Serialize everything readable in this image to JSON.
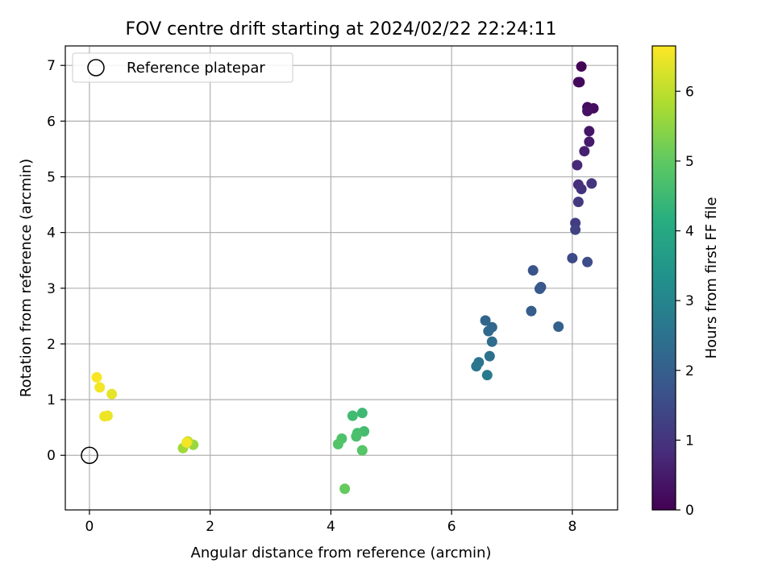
{
  "chart_data": {
    "type": "scatter",
    "title": "FOV centre drift starting at 2024/02/22 22:24:11",
    "xlabel": "Angular distance from reference (arcmin)",
    "ylabel": "Rotation from reference (arcmin)",
    "xlim": [
      -0.4,
      8.75
    ],
    "ylim": [
      -0.98,
      7.35
    ],
    "xticks": [
      0,
      2,
      4,
      6,
      8
    ],
    "yticks": [
      0,
      1,
      2,
      3,
      4,
      5,
      6,
      7
    ],
    "grid": true,
    "legend": {
      "placement": "top-left",
      "entries": [
        "Reference platepar"
      ]
    },
    "reference_point": {
      "x": 0,
      "y": 0
    },
    "colorbar": {
      "label": "Hours from first FF file",
      "colormap": "viridis",
      "range": [
        0,
        6.65
      ],
      "ticks": [
        0,
        1,
        2,
        3,
        4,
        5,
        6
      ]
    },
    "points": [
      {
        "x": 8.15,
        "y": 6.98,
        "c": 0.05
      },
      {
        "x": 8.1,
        "y": 6.7,
        "c": 0.1
      },
      {
        "x": 8.12,
        "y": 6.7,
        "c": 0.15
      },
      {
        "x": 8.25,
        "y": 6.25,
        "c": 0.2
      },
      {
        "x": 8.35,
        "y": 6.23,
        "c": 0.25
      },
      {
        "x": 8.25,
        "y": 6.18,
        "c": 0.3
      },
      {
        "x": 8.28,
        "y": 5.82,
        "c": 0.4
      },
      {
        "x": 8.28,
        "y": 5.63,
        "c": 0.5
      },
      {
        "x": 8.2,
        "y": 5.46,
        "c": 0.6
      },
      {
        "x": 8.08,
        "y": 5.21,
        "c": 0.75
      },
      {
        "x": 8.1,
        "y": 4.86,
        "c": 0.85
      },
      {
        "x": 8.15,
        "y": 4.78,
        "c": 0.95
      },
      {
        "x": 8.32,
        "y": 4.88,
        "c": 1.0
      },
      {
        "x": 8.1,
        "y": 4.55,
        "c": 1.1
      },
      {
        "x": 8.05,
        "y": 4.17,
        "c": 1.2
      },
      {
        "x": 8.05,
        "y": 4.05,
        "c": 1.3
      },
      {
        "x": 8.0,
        "y": 3.54,
        "c": 1.45
      },
      {
        "x": 8.25,
        "y": 3.47,
        "c": 1.55
      },
      {
        "x": 7.35,
        "y": 3.32,
        "c": 1.7
      },
      {
        "x": 7.48,
        "y": 3.02,
        "c": 1.8
      },
      {
        "x": 7.46,
        "y": 2.99,
        "c": 1.85
      },
      {
        "x": 7.32,
        "y": 2.59,
        "c": 1.95
      },
      {
        "x": 7.77,
        "y": 2.31,
        "c": 2.05
      },
      {
        "x": 6.56,
        "y": 2.42,
        "c": 2.15
      },
      {
        "x": 6.67,
        "y": 2.3,
        "c": 2.2
      },
      {
        "x": 6.61,
        "y": 2.23,
        "c": 2.25
      },
      {
        "x": 6.67,
        "y": 2.04,
        "c": 2.35
      },
      {
        "x": 6.63,
        "y": 1.78,
        "c": 2.45
      },
      {
        "x": 6.45,
        "y": 1.67,
        "c": 2.55
      },
      {
        "x": 6.41,
        "y": 1.6,
        "c": 2.6
      },
      {
        "x": 6.59,
        "y": 1.44,
        "c": 2.7
      },
      {
        "x": 4.52,
        "y": 0.76,
        "c": 4.5
      },
      {
        "x": 4.36,
        "y": 0.71,
        "c": 4.55
      },
      {
        "x": 4.55,
        "y": 0.43,
        "c": 4.6
      },
      {
        "x": 4.44,
        "y": 0.4,
        "c": 4.65
      },
      {
        "x": 4.42,
        "y": 0.34,
        "c": 4.7
      },
      {
        "x": 4.18,
        "y": 0.3,
        "c": 4.75
      },
      {
        "x": 4.12,
        "y": 0.2,
        "c": 4.8
      },
      {
        "x": 4.52,
        "y": 0.09,
        "c": 4.85
      },
      {
        "x": 4.23,
        "y": -0.6,
        "c": 5.05
      },
      {
        "x": 1.72,
        "y": 0.19,
        "c": 5.6
      },
      {
        "x": 1.55,
        "y": 0.13,
        "c": 5.7
      },
      {
        "x": 1.63,
        "y": 0.25,
        "c": 6.0
      },
      {
        "x": 1.61,
        "y": 0.23,
        "c": 6.55
      },
      {
        "x": 0.37,
        "y": 1.1,
        "c": 6.4
      },
      {
        "x": 0.3,
        "y": 0.71,
        "c": 6.45
      },
      {
        "x": 0.25,
        "y": 0.7,
        "c": 6.5
      },
      {
        "x": 0.17,
        "y": 1.22,
        "c": 6.55
      },
      {
        "x": 0.12,
        "y": 1.4,
        "c": 6.6
      }
    ]
  }
}
